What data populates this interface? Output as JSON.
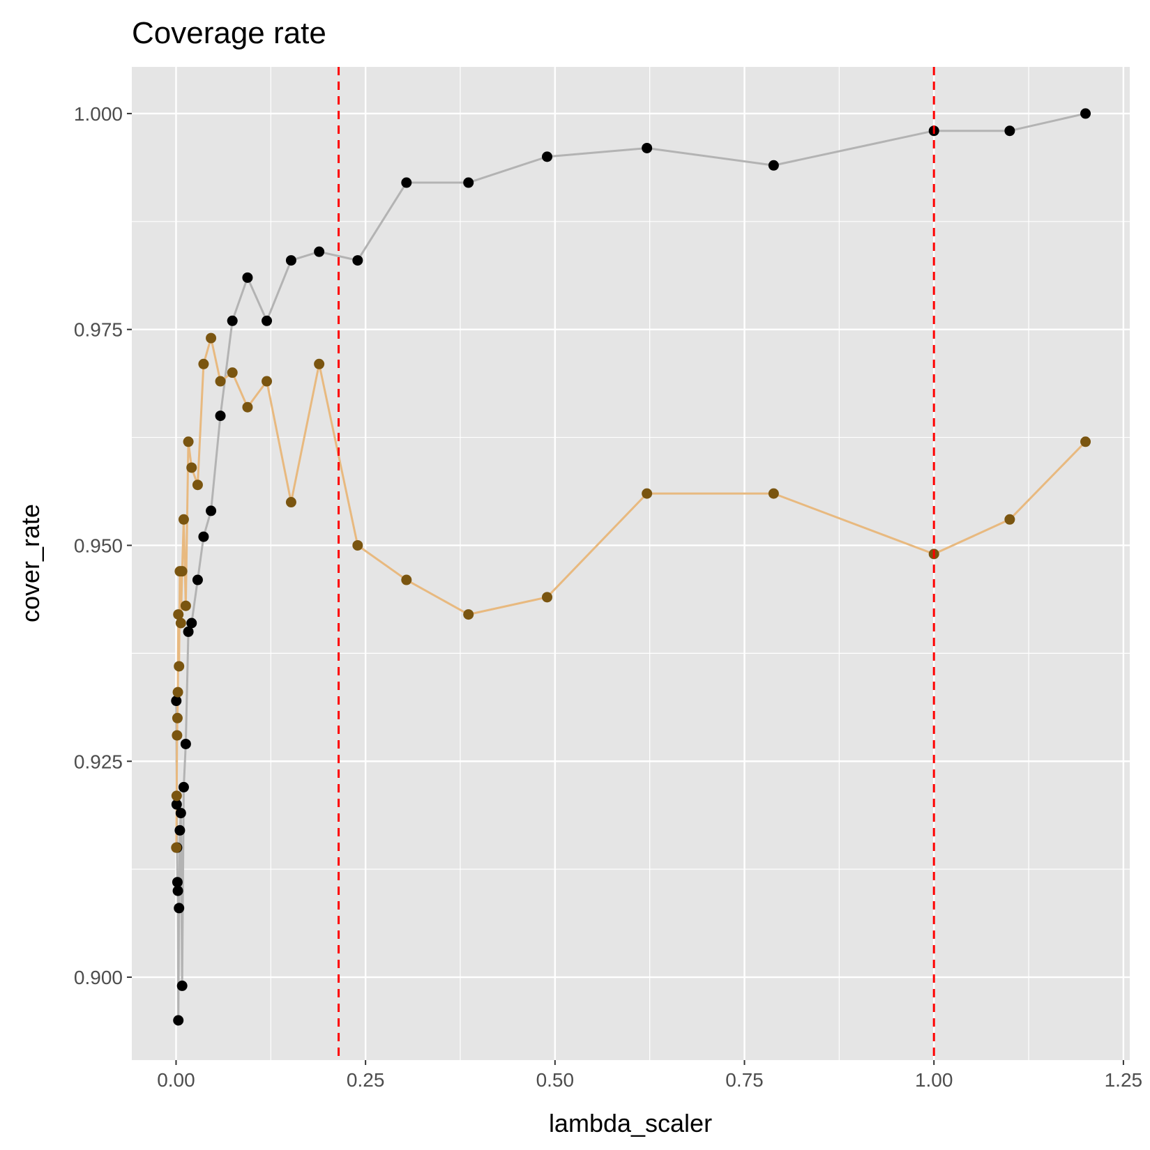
{
  "chart_data": {
    "type": "line",
    "title": "Coverage rate",
    "xlabel": "lambda_scaler",
    "ylabel": "cover_rate",
    "xlim": [
      -0.0584,
      1.2584
    ],
    "ylim": [
      0.8904,
      1.0054
    ],
    "x_ticks": [
      0.0,
      0.25,
      0.5,
      0.75,
      1.0,
      1.25
    ],
    "x_tick_labels": [
      "0.00",
      "0.25",
      "0.50",
      "0.75",
      "1.00",
      "1.25"
    ],
    "y_ticks": [
      0.9,
      0.925,
      0.95,
      0.975,
      1.0
    ],
    "y_tick_labels": [
      "0.900",
      "0.925",
      "0.950",
      "0.975",
      "1.000"
    ],
    "grid": true,
    "background": "#e5e5e5",
    "vlines": [
      {
        "x": 0.2145,
        "color": "#ff0000",
        "style": "dashed"
      },
      {
        "x": 1.0,
        "color": "#ff0000",
        "style": "dashed"
      }
    ],
    "series": [
      {
        "line_color": "#b3b3b3",
        "point_color": "#000000",
        "x": [
          0.0003,
          0.0008,
          0.0013,
          0.0018,
          0.0024,
          0.003,
          0.0039,
          0.005,
          0.0063,
          0.008,
          0.0101,
          0.0128,
          0.0162,
          0.0205,
          0.0285,
          0.0363,
          0.0461,
          0.0585,
          0.0743,
          0.0943,
          0.1197,
          0.1518,
          0.1888,
          0.2396,
          0.304,
          0.3858,
          0.4896,
          0.6213,
          0.7885,
          1.0,
          1.1,
          1.2
        ],
        "y": [
          0.932,
          0.92,
          0.915,
          0.911,
          0.91,
          0.895,
          0.908,
          0.917,
          0.919,
          0.899,
          0.922,
          0.927,
          0.94,
          0.941,
          0.946,
          0.951,
          0.954,
          0.965,
          0.976,
          0.981,
          0.976,
          0.983,
          0.984,
          0.983,
          0.992,
          0.992,
          0.995,
          0.996,
          0.994,
          0.998,
          0.998,
          1.0
        ]
      },
      {
        "line_color": "#e8b97f",
        "point_color": "#7a5510",
        "x": [
          0.0003,
          0.0008,
          0.0013,
          0.0018,
          0.0024,
          0.003,
          0.0039,
          0.005,
          0.0063,
          0.008,
          0.0101,
          0.0128,
          0.0162,
          0.0205,
          0.0285,
          0.0363,
          0.0461,
          0.0585,
          0.0743,
          0.0943,
          0.1197,
          0.1518,
          0.1888,
          0.2396,
          0.304,
          0.3858,
          0.4896,
          0.6213,
          0.7885,
          1.0,
          1.1,
          1.2
        ],
        "y": [
          0.915,
          0.921,
          0.928,
          0.93,
          0.933,
          0.942,
          0.936,
          0.947,
          0.941,
          0.947,
          0.953,
          0.943,
          0.962,
          0.959,
          0.957,
          0.971,
          0.974,
          0.969,
          0.97,
          0.966,
          0.969,
          0.955,
          0.971,
          0.95,
          0.946,
          0.942,
          0.944,
          0.956,
          0.956,
          0.949,
          0.953,
          0.962
        ]
      }
    ]
  }
}
